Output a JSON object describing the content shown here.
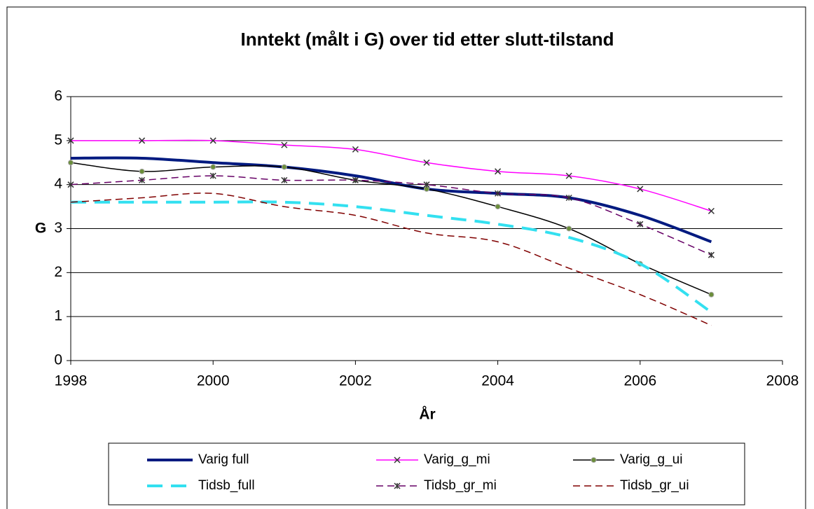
{
  "chart_data": {
    "type": "line",
    "title": "Inntekt (målt i G) over tid etter slutt-tilstand",
    "x_label": "År",
    "y_label": "G",
    "x": [
      1998,
      1999,
      2000,
      2001,
      2002,
      2003,
      2004,
      2005,
      2006,
      2007
    ],
    "xlim": [
      1998,
      2008
    ],
    "xticks": [
      1998,
      2000,
      2002,
      2004,
      2006,
      2008
    ],
    "ylim": [
      0,
      6
    ],
    "yticks": [
      0,
      1,
      2,
      3,
      4,
      5,
      6
    ],
    "grid": true,
    "smooth": true,
    "legend": "bottom",
    "series": [
      {
        "name": "Varig full",
        "color": "#001a80",
        "width": 4,
        "dash": false,
        "marker": "none",
        "values": [
          4.6,
          4.6,
          4.5,
          4.4,
          4.2,
          3.9,
          3.8,
          3.7,
          3.3,
          2.7
        ]
      },
      {
        "name": "Varig_g_mi",
        "color": "#ff00ff",
        "width": 1.5,
        "dash": false,
        "marker": "x",
        "values": [
          5.0,
          5.0,
          5.0,
          4.9,
          4.8,
          4.5,
          4.3,
          4.2,
          3.9,
          3.4
        ]
      },
      {
        "name": "Varig_g_ui",
        "color": "#000000",
        "width": 1.5,
        "dash": false,
        "marker": "circle",
        "values": [
          4.5,
          4.3,
          4.4,
          4.4,
          4.1,
          3.9,
          3.5,
          3.0,
          2.2,
          1.5
        ]
      },
      {
        "name": "Tidsb_full",
        "color": "#33e0f0",
        "width": 4,
        "dash": true,
        "marker": "none",
        "values": [
          3.6,
          3.6,
          3.6,
          3.6,
          3.5,
          3.3,
          3.1,
          2.8,
          2.2,
          1.1
        ]
      },
      {
        "name": "Tidsb_gr_mi",
        "color": "#660066",
        "width": 1.5,
        "dash": true,
        "marker": "star",
        "values": [
          4.0,
          4.1,
          4.2,
          4.1,
          4.1,
          4.0,
          3.8,
          3.7,
          3.1,
          2.4
        ]
      },
      {
        "name": "Tidsb_gr_ui",
        "color": "#800000",
        "width": 1.5,
        "dash": true,
        "marker": "none",
        "values": [
          3.6,
          3.7,
          3.8,
          3.5,
          3.3,
          2.9,
          2.7,
          2.1,
          1.5,
          0.8
        ]
      }
    ]
  }
}
